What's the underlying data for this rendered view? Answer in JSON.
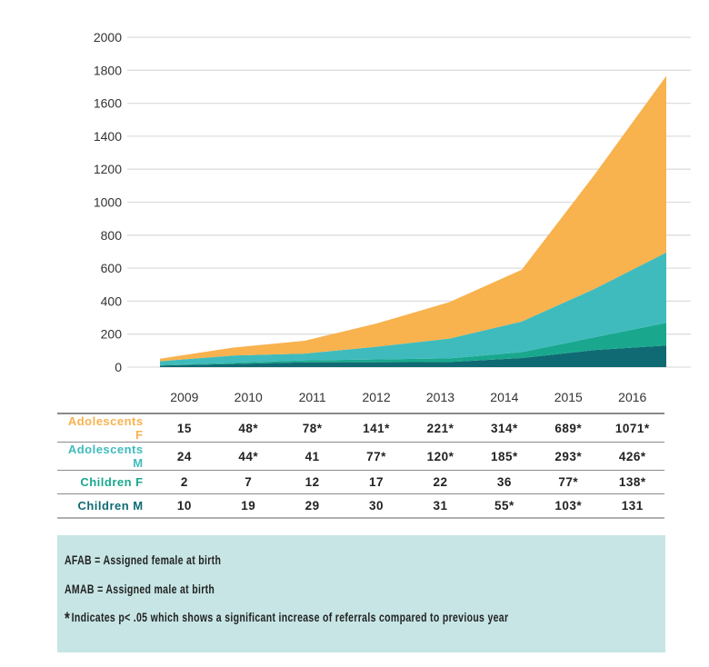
{
  "chart_data": {
    "type": "area",
    "stacked": true,
    "title": "",
    "xlabel": "",
    "ylabel": "",
    "ylim": [
      0,
      2000
    ],
    "yticks": [
      0,
      200,
      400,
      600,
      800,
      1000,
      1200,
      1400,
      1600,
      1800,
      2000
    ],
    "grid": true,
    "categories": [
      "2009",
      "2010",
      "2011",
      "2012",
      "2013",
      "2014",
      "2015",
      "2016"
    ],
    "series": [
      {
        "name": "Children M",
        "color": "#0f6a73",
        "values": [
          10,
          19,
          29,
          30,
          31,
          55,
          103,
          131
        ],
        "labels": [
          "10",
          "19",
          "29",
          "30",
          "31",
          "55*",
          "103*",
          "131"
        ]
      },
      {
        "name": "Children F",
        "color": "#19a88e",
        "values": [
          2,
          7,
          12,
          17,
          22,
          36,
          77,
          138
        ],
        "labels": [
          "2",
          "7",
          "12",
          "17",
          "22",
          "36",
          "77*",
          "138*"
        ]
      },
      {
        "name": "Adolescents M",
        "color": "#3fbbbd",
        "values": [
          24,
          44,
          41,
          77,
          120,
          185,
          293,
          426
        ],
        "labels": [
          "24",
          "44*",
          "41",
          "77*",
          "120*",
          "185*",
          "293*",
          "426*"
        ]
      },
      {
        "name": "Adolescents F",
        "color": "#f8b24e",
        "values": [
          15,
          48,
          78,
          141,
          221,
          314,
          689,
          1071
        ],
        "labels": [
          "15",
          "48*",
          "78*",
          "141*",
          "221*",
          "314*",
          "689*",
          "1071*"
        ]
      }
    ]
  },
  "table": {
    "years": [
      "2009",
      "2010",
      "2011",
      "2012",
      "2013",
      "2014",
      "2015",
      "2016"
    ],
    "rows": [
      {
        "label": "Adolescents F",
        "color": "#f8b24e",
        "cells": [
          "15",
          "48*",
          "78*",
          "141*",
          "221*",
          "314*",
          "689*",
          "1071*"
        ]
      },
      {
        "label": "Adolescents M",
        "color": "#3fbbbd",
        "cells": [
          "24",
          "44*",
          "41",
          "77*",
          "120*",
          "185*",
          "293*",
          "426*"
        ]
      },
      {
        "label": "Children F",
        "color": "#19a88e",
        "cells": [
          "2",
          "7",
          "12",
          "17",
          "22",
          "36",
          "77*",
          "138*"
        ]
      },
      {
        "label": "Children M",
        "color": "#0f6a73",
        "cells": [
          "10",
          "19",
          "29",
          "30",
          "31",
          "55*",
          "103*",
          "131"
        ]
      }
    ]
  },
  "notes": {
    "afab": "AFAB = Assigned female at birth",
    "amab": "AMAB = Assigned male at birth",
    "star": "*",
    "significance": "Indicates p< .05 which shows a significant increase of referrals compared to previous year"
  }
}
